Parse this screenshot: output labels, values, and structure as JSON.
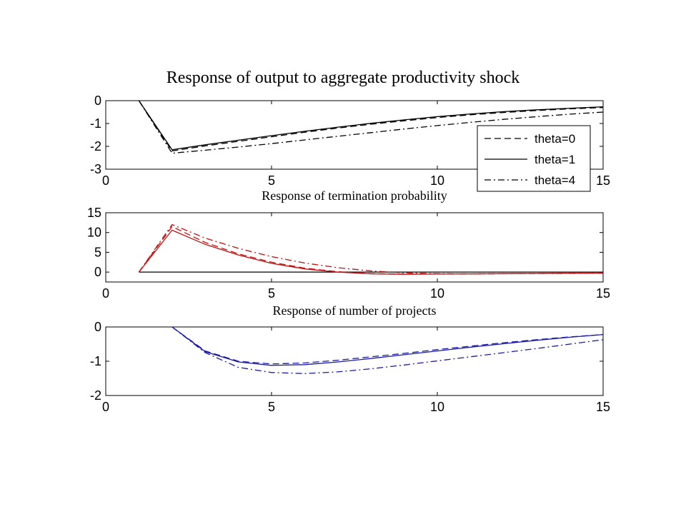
{
  "chart_data": [
    {
      "type": "line",
      "title": "Response of output to aggregate productivity shock",
      "xlim": [
        0,
        15
      ],
      "ylim": [
        -3,
        0
      ],
      "xticks": [
        "0",
        "5",
        "10",
        "15"
      ],
      "yticks": [
        "0",
        "-1",
        "-2",
        "-3"
      ],
      "x": [
        1,
        2,
        3,
        4,
        5,
        6,
        7,
        8,
        9,
        10,
        11,
        12,
        13,
        14,
        15
      ],
      "legend": {
        "position": "bottom-right",
        "entries": [
          "theta=0",
          "theta=1",
          "theta=4"
        ]
      },
      "series": [
        {
          "name": "theta=0",
          "style": "dashed",
          "color": "#000000",
          "values": [
            0,
            -2.2,
            -1.98,
            -1.78,
            -1.58,
            -1.38,
            -1.2,
            -1.03,
            -0.88,
            -0.74,
            -0.62,
            -0.52,
            -0.43,
            -0.36,
            -0.3
          ]
        },
        {
          "name": "theta=1",
          "style": "solid",
          "color": "#000000",
          "values": [
            0,
            -2.15,
            -1.93,
            -1.73,
            -1.53,
            -1.34,
            -1.16,
            -0.99,
            -0.84,
            -0.7,
            -0.58,
            -0.48,
            -0.4,
            -0.33,
            -0.27
          ]
        },
        {
          "name": "theta=4",
          "style": "dashdot",
          "color": "#000000",
          "values": [
            0,
            -2.3,
            -2.17,
            -2.03,
            -1.88,
            -1.72,
            -1.56,
            -1.4,
            -1.24,
            -1.09,
            -0.95,
            -0.82,
            -0.7,
            -0.59,
            -0.5
          ]
        }
      ]
    },
    {
      "type": "line",
      "title": "Response of termination probability",
      "xlim": [
        0,
        15
      ],
      "ylim": [
        -2.5,
        15
      ],
      "xticks": [
        "0",
        "5",
        "10",
        "15"
      ],
      "yticks": [
        "15",
        "10",
        "5",
        "0"
      ],
      "ytick_values": [
        15,
        10,
        5,
        0
      ],
      "x": [
        1,
        2,
        3,
        4,
        5,
        6,
        7,
        8,
        9,
        10,
        11,
        12,
        13,
        14,
        15
      ],
      "zero_line": true,
      "series": [
        {
          "name": "theta=0",
          "style": "dashed",
          "color": "#c01010",
          "values": [
            0,
            11.5,
            7.5,
            4.6,
            2.5,
            1.0,
            0.1,
            -0.4,
            -0.5,
            -0.5,
            -0.45,
            -0.4,
            -0.35,
            -0.3,
            -0.25
          ]
        },
        {
          "name": "theta=1",
          "style": "solid",
          "color": "#c01010",
          "values": [
            0,
            10.6,
            7.0,
            4.3,
            2.2,
            0.8,
            0.0,
            -0.45,
            -0.55,
            -0.5,
            -0.45,
            -0.4,
            -0.35,
            -0.3,
            -0.25
          ]
        },
        {
          "name": "theta=4",
          "style": "dashdot",
          "color": "#c01010",
          "values": [
            0,
            12.0,
            8.6,
            6.0,
            3.9,
            2.3,
            1.1,
            0.3,
            -0.2,
            -0.4,
            -0.45,
            -0.42,
            -0.38,
            -0.33,
            -0.28
          ]
        }
      ]
    },
    {
      "type": "line",
      "title": "Response of number of projects",
      "xlim": [
        0,
        15
      ],
      "ylim": [
        -2,
        0
      ],
      "xticks": [
        "0",
        "5",
        "10",
        "15"
      ],
      "yticks": [
        "0",
        "-1",
        "-2"
      ],
      "ytick_values": [
        0,
        -1,
        -2
      ],
      "x": [
        2,
        3,
        4,
        5,
        6,
        7,
        8,
        9,
        10,
        11,
        12,
        13,
        14,
        15
      ],
      "series": [
        {
          "name": "theta=0",
          "style": "dashed",
          "color": "#1a1aa6",
          "values": [
            0,
            -0.7,
            -1.0,
            -1.08,
            -1.05,
            -0.97,
            -0.87,
            -0.77,
            -0.66,
            -0.56,
            -0.46,
            -0.37,
            -0.29,
            -0.22
          ]
        },
        {
          "name": "theta=1",
          "style": "solid",
          "color": "#1a1aa6",
          "values": [
            0,
            -0.72,
            -1.02,
            -1.12,
            -1.1,
            -1.02,
            -0.92,
            -0.81,
            -0.7,
            -0.59,
            -0.49,
            -0.39,
            -0.3,
            -0.22
          ]
        },
        {
          "name": "theta=4",
          "style": "dashdot",
          "color": "#1a1aa6",
          "values": [
            0,
            -0.75,
            -1.18,
            -1.33,
            -1.36,
            -1.31,
            -1.22,
            -1.11,
            -0.99,
            -0.87,
            -0.75,
            -0.63,
            -0.5,
            -0.37
          ]
        }
      ]
    }
  ]
}
